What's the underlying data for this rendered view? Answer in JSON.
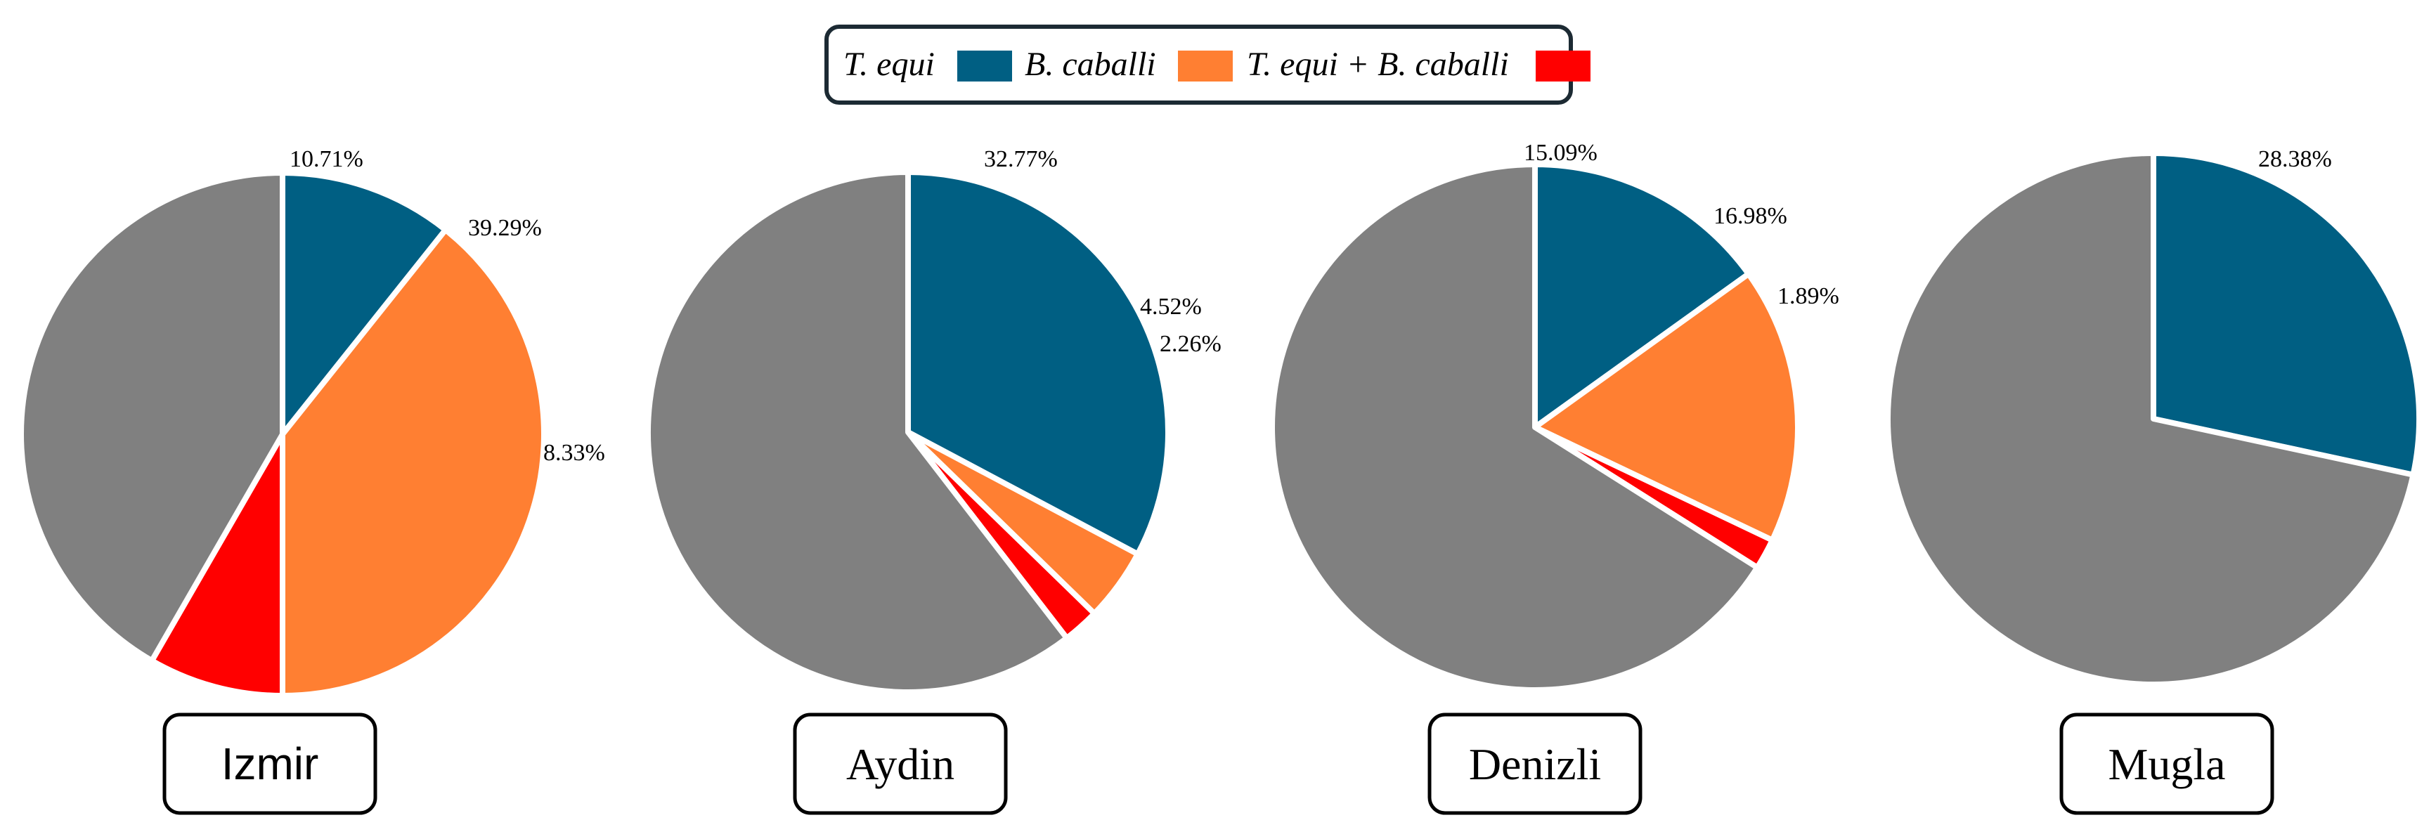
{
  "colors": {
    "t_equi": "#005f83",
    "b_caballi": "#ff7f32",
    "mixed": "#ff0000",
    "negative": "#808080",
    "border": "#1c2a33"
  },
  "legend": {
    "items": [
      {
        "label": "T. equi",
        "color_key": "t_equi"
      },
      {
        "label": "B. caballi",
        "color_key": "b_caballi"
      },
      {
        "label": "T. equi + B. caballi",
        "color_key": "mixed"
      }
    ]
  },
  "chart_data": [
    {
      "type": "pie",
      "title": "Izmir",
      "slices": [
        {
          "series": "T. equi",
          "percent": 10.71,
          "label": "10.71%"
        },
        {
          "series": "B. caballi",
          "percent": 39.29,
          "label": "39.29%"
        },
        {
          "series": "T. equi + B. caballi",
          "percent": 8.33,
          "label": "8.33%"
        },
        {
          "series": "negative",
          "percent": 41.67,
          "label": ""
        }
      ]
    },
    {
      "type": "pie",
      "title": "Aydin",
      "slices": [
        {
          "series": "T. equi",
          "percent": 32.77,
          "label": "32.77%"
        },
        {
          "series": "B. caballi",
          "percent": 4.52,
          "label": "4.52%"
        },
        {
          "series": "T. equi + B. caballi",
          "percent": 2.26,
          "label": "2.26%"
        },
        {
          "series": "negative",
          "percent": 60.45,
          "label": ""
        }
      ]
    },
    {
      "type": "pie",
      "title": "Denizli",
      "slices": [
        {
          "series": "T. equi",
          "percent": 15.09,
          "label": "15.09%"
        },
        {
          "series": "B. caballi",
          "percent": 16.98,
          "label": "16.98%"
        },
        {
          "series": "T. equi + B. caballi",
          "percent": 1.89,
          "label": "1.89%"
        },
        {
          "series": "negative",
          "percent": 66.04,
          "label": ""
        }
      ]
    },
    {
      "type": "pie",
      "title": "Mugla",
      "slices": [
        {
          "series": "T. equi",
          "percent": 28.38,
          "label": "28.38%"
        },
        {
          "series": "negative",
          "percent": 71.62,
          "label": ""
        }
      ]
    }
  ]
}
